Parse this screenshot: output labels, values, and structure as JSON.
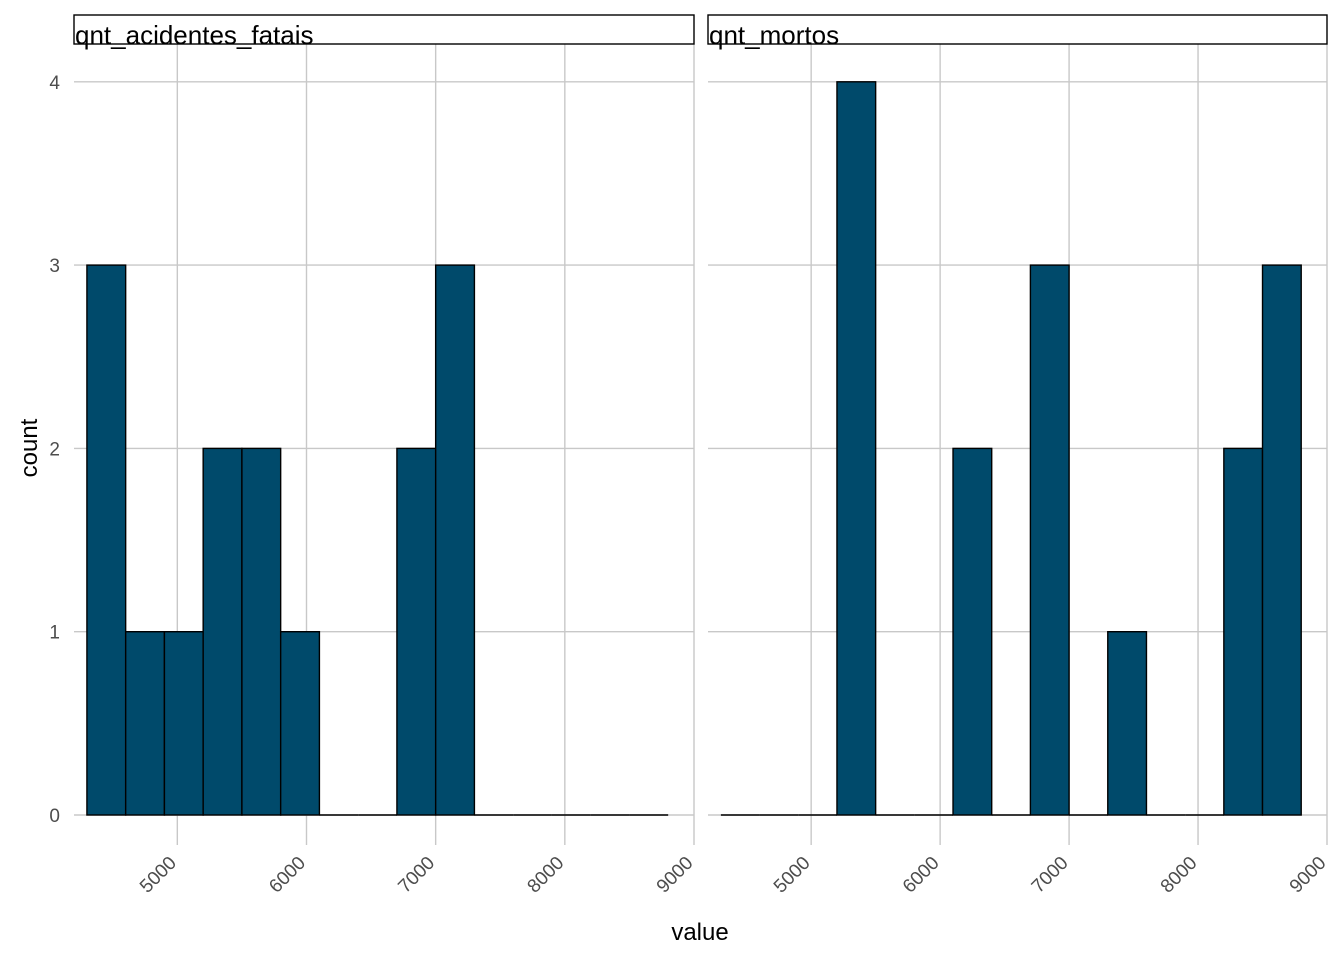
{
  "chart_data": {
    "type": "bar",
    "subtype": "histogram-facets",
    "xlabel": "value",
    "ylabel": "count",
    "xlim": [
      4200,
      9000
    ],
    "ylim": [
      0,
      4
    ],
    "x_ticks": [
      5000,
      6000,
      7000,
      8000,
      9000
    ],
    "y_ticks": [
      0,
      1,
      2,
      3,
      4
    ],
    "grid": true,
    "bar_color": "#004a6b",
    "bar_outline": "#000000",
    "panels": [
      {
        "name": "qnt_acidentes_fatais",
        "bins": [
          {
            "x0": 4300,
            "x1": 4600,
            "count": 3
          },
          {
            "x0": 4600,
            "x1": 4900,
            "count": 1
          },
          {
            "x0": 4900,
            "x1": 5200,
            "count": 1
          },
          {
            "x0": 5200,
            "x1": 5500,
            "count": 2
          },
          {
            "x0": 5500,
            "x1": 5800,
            "count": 2
          },
          {
            "x0": 5800,
            "x1": 6100,
            "count": 1
          },
          {
            "x0": 6100,
            "x1": 6400,
            "count": 0
          },
          {
            "x0": 6400,
            "x1": 6700,
            "count": 0
          },
          {
            "x0": 6700,
            "x1": 7000,
            "count": 2
          },
          {
            "x0": 7000,
            "x1": 7300,
            "count": 3
          },
          {
            "x0": 7300,
            "x1": 7600,
            "count": 0
          },
          {
            "x0": 7600,
            "x1": 7900,
            "count": 0
          },
          {
            "x0": 7900,
            "x1": 8200,
            "count": 0
          },
          {
            "x0": 8200,
            "x1": 8500,
            "count": 0
          },
          {
            "x0": 8500,
            "x1": 8800,
            "count": 0
          }
        ]
      },
      {
        "name": "qnt_mortos",
        "bins": [
          {
            "x0": 4300,
            "x1": 4600,
            "count": 0
          },
          {
            "x0": 4600,
            "x1": 4900,
            "count": 0
          },
          {
            "x0": 4900,
            "x1": 5200,
            "count": 0
          },
          {
            "x0": 5200,
            "x1": 5500,
            "count": 4
          },
          {
            "x0": 5500,
            "x1": 5800,
            "count": 0
          },
          {
            "x0": 5800,
            "x1": 6100,
            "count": 0
          },
          {
            "x0": 6100,
            "x1": 6400,
            "count": 2
          },
          {
            "x0": 6400,
            "x1": 6700,
            "count": 0
          },
          {
            "x0": 6700,
            "x1": 7000,
            "count": 3
          },
          {
            "x0": 7000,
            "x1": 7300,
            "count": 0
          },
          {
            "x0": 7300,
            "x1": 7600,
            "count": 1
          },
          {
            "x0": 7600,
            "x1": 7900,
            "count": 0
          },
          {
            "x0": 7900,
            "x1": 8200,
            "count": 0
          },
          {
            "x0": 8200,
            "x1": 8500,
            "count": 2
          },
          {
            "x0": 8500,
            "x1": 8800,
            "count": 3
          }
        ]
      }
    ]
  }
}
